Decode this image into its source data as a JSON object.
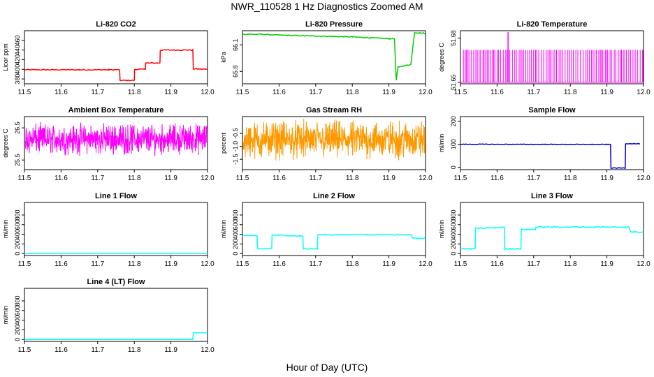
{
  "page": {
    "title": "NWR_110528  1 Hz Diagnostics Zoomed AM",
    "x_axis_title": "Hour of Day (UTC)"
  },
  "chart_data": [
    {
      "type": "line",
      "title": "Li-820 CO2",
      "ylabel": "Licor ppm",
      "xlabel": "",
      "xlim": [
        11.5,
        12.0
      ],
      "ylim": [
        370,
        480
      ],
      "xticks": [
        "11.5",
        "11.6",
        "11.7",
        "11.8",
        "11.9",
        "12.0"
      ],
      "yticks": [
        "380",
        "400",
        "420",
        "440",
        "460"
      ],
      "color": "#ff0000",
      "noise": 1,
      "series": [
        {
          "x": [
            11.5,
            11.65,
            11.73,
            11.76,
            11.761,
            11.8,
            11.801,
            11.83,
            11.831,
            11.87,
            11.871,
            11.96,
            11.961,
            12.0
          ],
          "y": [
            399,
            399,
            399,
            399,
            377,
            377,
            400,
            400,
            413,
            413,
            440,
            440,
            401,
            400
          ]
        }
      ]
    },
    {
      "type": "line",
      "title": "Li-820 Pressure",
      "ylabel": "kPa",
      "xlabel": "",
      "xlim": [
        11.5,
        12.0
      ],
      "ylim": [
        65.66,
        66.26
      ],
      "xticks": [
        "11.5",
        "11.6",
        "11.7",
        "11.8",
        "11.9",
        "12.0"
      ],
      "yticks": [
        "65.8",
        "66.1"
      ],
      "color": "#00cc00",
      "noise": 0.005,
      "series": [
        {
          "x": [
            11.5,
            11.55,
            11.6,
            11.7,
            11.8,
            11.85,
            11.9,
            11.915,
            11.92,
            11.925,
            11.95,
            11.96,
            11.97,
            12.0
          ],
          "y": [
            66.22,
            66.22,
            66.21,
            66.2,
            66.19,
            66.18,
            66.17,
            66.17,
            65.7,
            65.85,
            65.87,
            65.88,
            66.24,
            66.23
          ]
        }
      ]
    },
    {
      "type": "line",
      "title": "Li-820 Temperature",
      "ylabel": "degrees C",
      "xlabel": "",
      "xlim": [
        11.5,
        12.0
      ],
      "ylim": [
        51.649,
        51.685
      ],
      "xticks": [
        "11.5",
        "11.6",
        "11.7",
        "11.8",
        "11.9",
        "12.0"
      ],
      "yticks": [
        "51.65",
        "51.68"
      ],
      "color": "#ff00ff",
      "series": [
        {
          "pattern": "binary-spikes",
          "levels": [
            51.65,
            51.672
          ],
          "spike": {
            "x": 11.63,
            "y": 51.684
          }
        }
      ]
    },
    {
      "type": "line",
      "title": "Ambient Box Temperature",
      "ylabel": "degrees C",
      "xlabel": "",
      "xlim": [
        11.5,
        12.0
      ],
      "ylim": [
        25.2,
        26.85
      ],
      "xticks": [
        "11.5",
        "11.6",
        "11.7",
        "11.8",
        "11.9",
        "12.0"
      ],
      "yticks": [
        "25.5",
        "26.5"
      ],
      "color": "#ff00ff",
      "series": [
        {
          "pattern": "dense-noise",
          "center": 26.15,
          "spread": 0.55
        }
      ]
    },
    {
      "type": "line",
      "title": "Gas Stream RH",
      "ylabel": "percent",
      "xlabel": "",
      "xlim": [
        11.5,
        12.0
      ],
      "ylim": [
        -1.9,
        0.15
      ],
      "xticks": [
        "11.5",
        "11.6",
        "11.7",
        "11.8",
        "11.9",
        "12.0"
      ],
      "yticks": [
        "-1.5",
        "-1.0",
        "-0.5"
      ],
      "color": "#ff9900",
      "series": [
        {
          "pattern": "dense-noise",
          "center": -0.75,
          "spread": 0.85
        }
      ]
    },
    {
      "type": "line",
      "title": "Sample Flow",
      "ylabel": "ml/min",
      "xlabel": "",
      "xlim": [
        11.5,
        12.0
      ],
      "ylim": [
        -10,
        220
      ],
      "xticks": [
        "11.5",
        "11.6",
        "11.7",
        "11.8",
        "11.9",
        "12.0"
      ],
      "yticks": [
        "0",
        "100",
        "200"
      ],
      "color": "#0000cc",
      "noise": 1.5,
      "series": [
        {
          "x": [
            11.5,
            11.9,
            11.91,
            11.911,
            11.95,
            11.951,
            11.99
          ],
          "y": [
            100,
            99,
            99,
            -3,
            -3,
            103,
            102
          ]
        }
      ]
    },
    {
      "type": "line",
      "title": "Line 1 Flow",
      "ylabel": "ml/min",
      "xlabel": "",
      "xlim": [
        11.5,
        12.0
      ],
      "ylim": [
        -40,
        1060
      ],
      "xticks": [
        "11.5",
        "11.6",
        "11.7",
        "11.8",
        "11.9",
        "12.0"
      ],
      "yticks": [
        "0",
        "200",
        "400",
        "600",
        "800"
      ],
      "color": "#00ffff",
      "series": [
        {
          "x": [
            11.5,
            12.0
          ],
          "y": [
            0,
            0
          ]
        }
      ]
    },
    {
      "type": "line",
      "title": "Line 2 Flow",
      "ylabel": "ml/min",
      "xlabel": "",
      "xlim": [
        11.5,
        12.0
      ],
      "ylim": [
        -40,
        1060
      ],
      "xticks": [
        "11.5",
        "11.6",
        "11.7",
        "11.8",
        "11.9",
        "12.0"
      ],
      "yticks": [
        "0",
        "200",
        "400",
        "600",
        "800"
      ],
      "color": "#00ffff",
      "noise": 10,
      "series": [
        {
          "x": [
            11.5,
            11.54,
            11.541,
            11.58,
            11.581,
            11.665,
            11.666,
            11.705,
            11.706,
            11.96,
            11.965,
            12.0
          ],
          "y": [
            370,
            370,
            100,
            100,
            390,
            360,
            100,
            100,
            390,
            390,
            320,
            320
          ]
        }
      ]
    },
    {
      "type": "line",
      "title": "Line 3 Flow",
      "ylabel": "ml/min",
      "xlabel": "",
      "xlim": [
        11.5,
        12.0
      ],
      "ylim": [
        -40,
        1060
      ],
      "xticks": [
        "11.5",
        "11.6",
        "11.7",
        "11.8",
        "11.9",
        "12.0"
      ],
      "yticks": [
        "0",
        "200",
        "400",
        "600",
        "800"
      ],
      "color": "#00ffff",
      "noise": 12,
      "series": [
        {
          "x": [
            11.5,
            11.54,
            11.541,
            11.62,
            11.621,
            11.665,
            11.666,
            11.705,
            11.706,
            11.96,
            11.965,
            12.0
          ],
          "y": [
            100,
            100,
            520,
            545,
            100,
            100,
            500,
            500,
            550,
            550,
            450,
            450
          ]
        }
      ]
    },
    {
      "type": "line",
      "title": "Line 4 (LT) Flow",
      "ylabel": "ml/min",
      "xlabel": "",
      "xlim": [
        11.5,
        12.0
      ],
      "ylim": [
        -40,
        1060
      ],
      "xticks": [
        "11.5",
        "11.6",
        "11.7",
        "11.8",
        "11.9",
        "12.0"
      ],
      "yticks": [
        "0",
        "200",
        "400",
        "600",
        "800"
      ],
      "color": "#00ffff",
      "series": [
        {
          "x": [
            11.5,
            11.96,
            11.961,
            12.0
          ],
          "y": [
            0,
            0,
            140,
            140
          ]
        }
      ]
    }
  ]
}
